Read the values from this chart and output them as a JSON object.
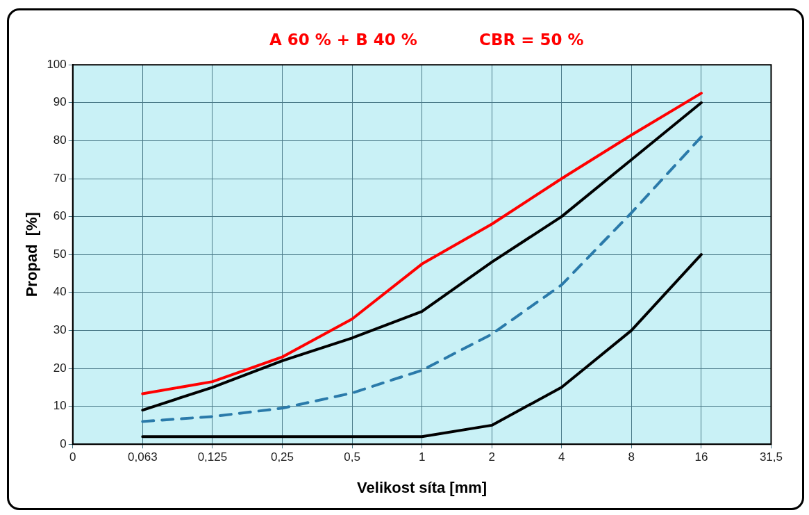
{
  "chart_data": {
    "type": "line",
    "annotations": [
      "A 60 % + B 40 %",
      "CBR = 50 %"
    ],
    "xlabel": "Velikost síta [mm]",
    "ylabel": "Propad  [%]",
    "categories": [
      "0",
      "0,063",
      "0,125",
      "0,25",
      "0,5",
      "1",
      "2",
      "4",
      "8",
      "16",
      "31,5"
    ],
    "series": [
      {
        "color": "#ff0000",
        "values": [
          null,
          13.3,
          16.5,
          23,
          33,
          47.5,
          58,
          70,
          81.5,
          92.5,
          null
        ]
      },
      {
        "color": "#000000",
        "values": [
          null,
          9,
          15,
          22,
          28,
          35,
          48,
          60,
          75,
          90,
          null
        ]
      },
      {
        "color": "#2a7aaa",
        "line_style": "dashed",
        "values": [
          null,
          6,
          7.3,
          9.5,
          13.5,
          19.5,
          29,
          42,
          61,
          81,
          null
        ]
      },
      {
        "color": "#000000",
        "values": [
          null,
          2,
          2,
          2,
          2,
          2,
          5,
          15,
          30,
          50,
          null
        ]
      }
    ],
    "ylim": [
      0,
      100
    ],
    "yticks": [
      0,
      10,
      20,
      30,
      40,
      50,
      60,
      70,
      80,
      90,
      100
    ],
    "grid": true,
    "legend": false,
    "marker": "none",
    "line_style": "solid"
  }
}
